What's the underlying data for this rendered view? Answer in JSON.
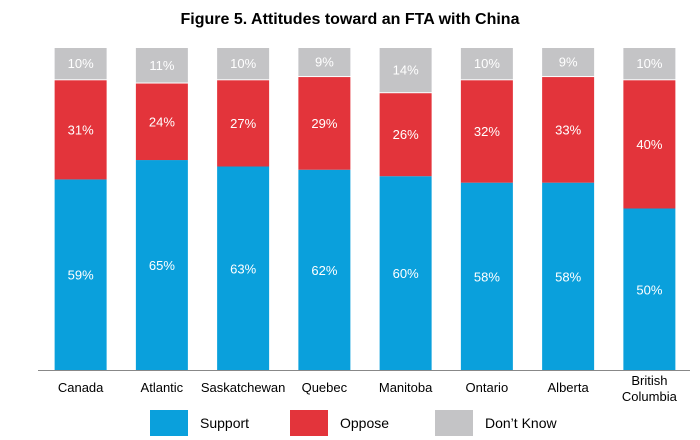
{
  "chart_data": {
    "type": "bar",
    "stacked": true,
    "title": "Figure 5. Attitudes toward an FTA with China",
    "xlabel": "",
    "ylabel": "",
    "ylim": [
      0,
      100
    ],
    "grid": false,
    "legend_placement": "bottom",
    "categories": [
      "Canada",
      "Atlantic",
      "Saskatchewan",
      "Quebec",
      "Manitoba",
      "Ontario",
      "Alberta",
      "British Columbia"
    ],
    "series": [
      {
        "name": "Support",
        "color": "#0aa0dc",
        "values": [
          59,
          65,
          63,
          62,
          60,
          58,
          58,
          50
        ]
      },
      {
        "name": "Oppose",
        "color": "#e3343b",
        "values": [
          31,
          24,
          27,
          29,
          26,
          32,
          33,
          40
        ]
      },
      {
        "name": "Don’t Know",
        "color": "#c4c4c6",
        "values": [
          10,
          11,
          10,
          9,
          14,
          10,
          9,
          10
        ]
      }
    ],
    "value_suffix": "%"
  }
}
